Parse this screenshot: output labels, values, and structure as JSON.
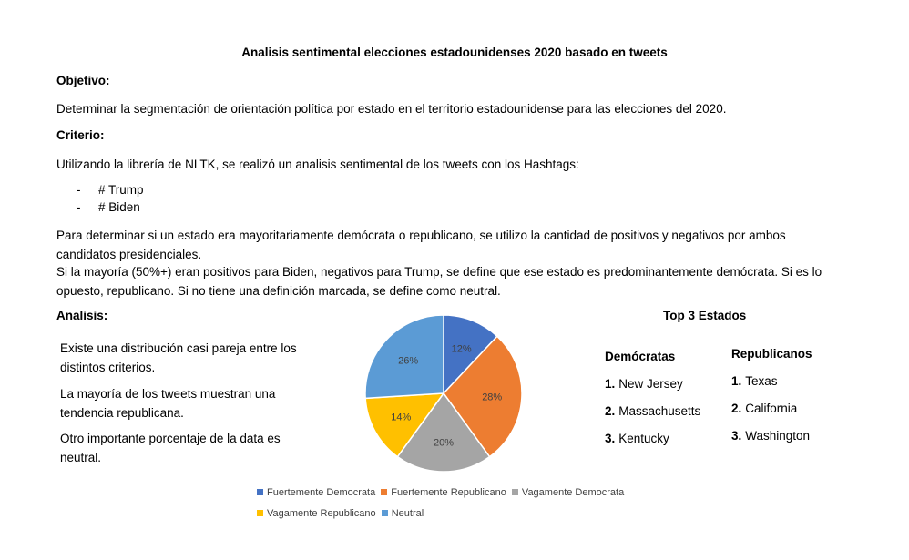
{
  "doc": {
    "title": "Analisis sentimental elecciones estadounidenses 2020 basado en tweets",
    "objetivo_heading": "Objetivo:",
    "objetivo_text": "Determinar la segmentación de orientación política por estado en el territorio estadounidense para las elecciones del 2020.",
    "criterio_heading": "Criterio:",
    "criterio_text": "Utilizando la librería de NLTK, se realizó un analisis sentimental de los tweets con los Hashtags:",
    "bullets": [
      "# Trump",
      "# Biden"
    ],
    "bullet_marker": "-",
    "para1": "Para determinar si un estado era mayoritariamente demócrata o republicano, se utilizo la cantidad de positivos y negativos por ambos candidatos presidenciales.",
    "para2": "Si la mayoría (50%+) eran positivos para Biden, negativos para Trump, se define que ese estado es predominantemente demócrata. Si es lo opuesto, republicano. Si no tiene una definición marcada, se define como neutral.",
    "analisis_heading": "Analisis:",
    "analisis_points": [
      "Existe una distribución casi pareja entre los distintos criterios.",
      "La mayoría de los tweets muestran una tendencia republicana.",
      "Otro importante porcentaje de la data es neutral."
    ]
  },
  "top3": {
    "title": "Top 3 Estados",
    "democratas_heading": "Demócratas",
    "democratas": [
      "New Jersey",
      "Massachusetts",
      "Kentucky"
    ],
    "republicanos_heading": "Republicanos",
    "republicanos": [
      "Texas",
      "California",
      "Washington"
    ],
    "numbers": [
      "1.",
      "2.",
      "3."
    ]
  },
  "chart_data": {
    "type": "pie",
    "categories": [
      "Fuertemente Democrata",
      "Fuertemente Republicano",
      "Vagamente Democrata",
      "Vagamente Republicano",
      "Neutral"
    ],
    "values": [
      12,
      28,
      20,
      14,
      26
    ],
    "value_labels": [
      "12%",
      "28%",
      "20%",
      "14%",
      "26%"
    ],
    "colors": [
      "#4472C4",
      "#ED7D31",
      "#A5A5A5",
      "#FFC000",
      "#5B9BD5"
    ],
    "legend_position": "bottom",
    "start": "12 o'clock, clockwise"
  }
}
